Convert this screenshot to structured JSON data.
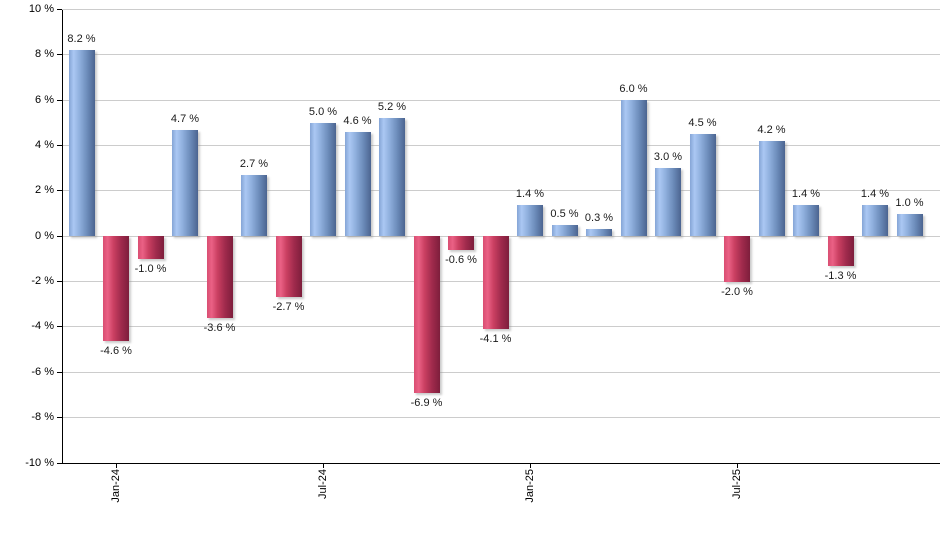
{
  "chart_data": {
    "type": "bar",
    "title": "",
    "xlabel": "",
    "ylabel": "",
    "ylim": [
      -10,
      10
    ],
    "grid": true,
    "legend": false,
    "y_ticks": [
      {
        "value": 10,
        "label": "10 %"
      },
      {
        "value": 8,
        "label": "8 %"
      },
      {
        "value": 6,
        "label": "6 %"
      },
      {
        "value": 4,
        "label": "4 %"
      },
      {
        "value": 2,
        "label": "2 %"
      },
      {
        "value": 0,
        "label": "0 %"
      },
      {
        "value": -2,
        "label": "-2 %"
      },
      {
        "value": -4,
        "label": "-4 %"
      },
      {
        "value": -6,
        "label": "-6 %"
      },
      {
        "value": -8,
        "label": "-8 %"
      },
      {
        "value": -10,
        "label": "-10 %"
      }
    ],
    "x_ticks": [
      {
        "index": 1,
        "label": "Jan-24"
      },
      {
        "index": 7,
        "label": "Jul-24"
      },
      {
        "index": 13,
        "label": "Jan-25"
      },
      {
        "index": 19,
        "label": "Jul-25"
      }
    ],
    "bars": [
      {
        "value": 8.2,
        "label": "8.2 %"
      },
      {
        "value": -4.6,
        "label": "-4.6 %"
      },
      {
        "value": -1.0,
        "label": "-1.0 %"
      },
      {
        "value": 4.7,
        "label": "4.7 %"
      },
      {
        "value": -3.6,
        "label": "-3.6 %"
      },
      {
        "value": 2.7,
        "label": "2.7 %"
      },
      {
        "value": -2.7,
        "label": "-2.7 %"
      },
      {
        "value": 5.0,
        "label": "5.0 %"
      },
      {
        "value": 4.6,
        "label": "4.6 %"
      },
      {
        "value": 5.2,
        "label": "5.2 %"
      },
      {
        "value": -6.9,
        "label": "-6.9 %"
      },
      {
        "value": -0.6,
        "label": "-0.6 %"
      },
      {
        "value": -4.1,
        "label": "-4.1 %"
      },
      {
        "value": 1.4,
        "label": "1.4 %"
      },
      {
        "value": 0.5,
        "label": "0.5 %"
      },
      {
        "value": 0.3,
        "label": "0.3 %"
      },
      {
        "value": 6.0,
        "label": "6.0 %"
      },
      {
        "value": 3.0,
        "label": "3.0 %"
      },
      {
        "value": 4.5,
        "label": "4.5 %"
      },
      {
        "value": -2.0,
        "label": "-2.0 %"
      },
      {
        "value": 4.2,
        "label": "4.2 %"
      },
      {
        "value": 1.4,
        "label": "1.4 %"
      },
      {
        "value": -1.3,
        "label": "-1.3 %"
      },
      {
        "value": 1.4,
        "label": "1.4 %"
      },
      {
        "value": 1.0,
        "label": "1.0 %"
      }
    ],
    "colors": {
      "positive_base": "#6f93c8",
      "positive_gradient": [
        "#85a5d6",
        "#abc8f3",
        "#90b0de",
        "#6c8cba",
        "#4b6490"
      ],
      "negative_base": "#c23b60",
      "negative_gradient": [
        "#d94e72",
        "#ea6185",
        "#cb4062",
        "#9f2a4c",
        "#7e1e3c"
      ],
      "gridline": "#cccccc",
      "axis": "#000000",
      "label_text": "#1a1a1a"
    }
  }
}
